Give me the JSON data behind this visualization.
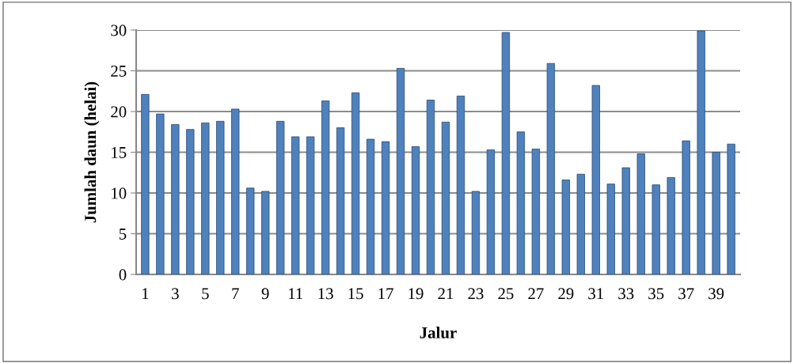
{
  "chart_data": {
    "type": "bar",
    "xlabel": "Jalur",
    "ylabel": "Jumlah daun (helai)",
    "categories": [
      "1",
      null,
      "3",
      null,
      "5",
      null,
      "7",
      null,
      "9",
      null,
      "11",
      null,
      "13",
      null,
      "15",
      null,
      "17",
      null,
      "19",
      null,
      "21",
      null,
      "23",
      null,
      "25",
      null,
      "27",
      null,
      "29",
      null,
      "31",
      null,
      "33",
      null,
      "35",
      null,
      "37",
      null,
      "39",
      null
    ],
    "values": [
      22.1,
      19.7,
      18.4,
      17.8,
      18.6,
      18.8,
      20.3,
      10.6,
      10.2,
      18.8,
      16.9,
      16.9,
      21.3,
      18.0,
      22.3,
      16.6,
      16.3,
      25.3,
      15.7,
      21.4,
      18.7,
      21.9,
      10.2,
      15.3,
      29.7,
      17.5,
      15.4,
      25.9,
      11.6,
      12.3,
      23.2,
      11.1,
      13.1,
      14.8,
      11.0,
      11.9,
      16.4,
      29.9,
      15.0,
      16.0
    ],
    "color": "#4f81bd",
    "ylim": [
      0,
      30
    ],
    "yticks": [
      0,
      5,
      10,
      15,
      20,
      25,
      30
    ],
    "grid": "y",
    "legend": false
  }
}
